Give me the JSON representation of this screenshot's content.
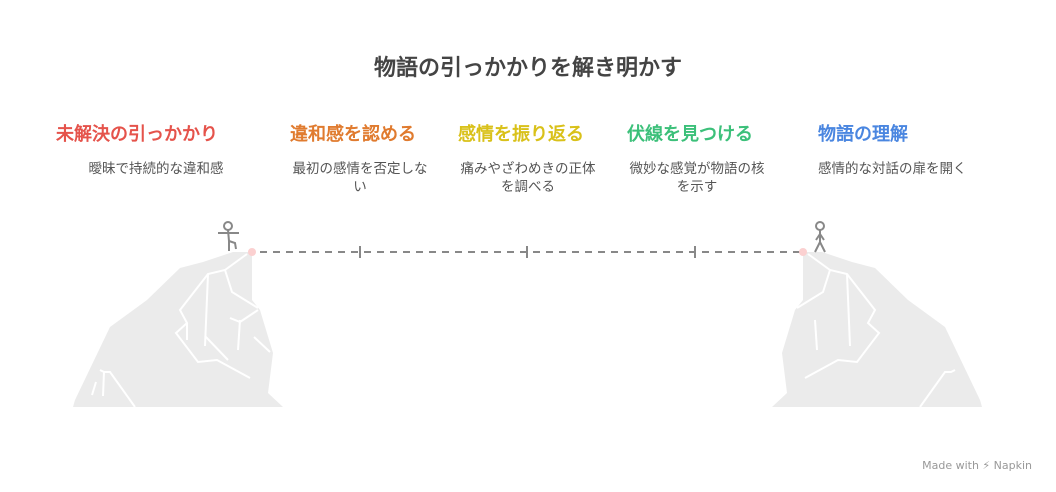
{
  "title": "物語の引っかかりを解き明かす",
  "steps": [
    {
      "heading": "未解決の引っかかり",
      "text": "曖昧で持続的な違和感",
      "color": "#e5534b"
    },
    {
      "heading": "違和感を認める",
      "text": "最初の感情を否定しない",
      "color": "#e07b2f"
    },
    {
      "heading": "感情を振り返る",
      "text": "痛みやざわめきの正体を調べる",
      "color": "#d9c11a"
    },
    {
      "heading": "伏線を見つける",
      "text": "微妙な感覚が物語の核を示す",
      "color": "#3cc07a"
    },
    {
      "heading": "物語の理解",
      "text": "感情的な対話の扉を開く",
      "color": "#4a86e0"
    }
  ],
  "credit": "Made with ⚡ Napkin",
  "icons": {
    "left": "stick-figure-walking-icon",
    "right": "stick-figure-standing-icon"
  }
}
